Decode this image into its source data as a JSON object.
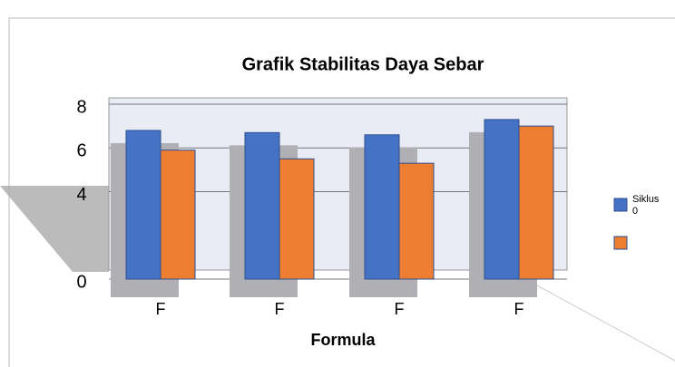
{
  "chart_data": {
    "type": "bar",
    "title": "Grafik Stabilitas Daya Sebar",
    "x_label": "Formula",
    "categories": [
      "F",
      "F",
      "F",
      "F"
    ],
    "series": [
      {
        "name": "Siklus 0",
        "color": "#4472c4",
        "values": [
          6.8,
          6.7,
          6.6,
          7.3
        ]
      },
      {
        "color": "#ed7d31",
        "values": [
          5.9,
          5.5,
          5.3,
          7.0
        ]
      }
    ],
    "ylim": [
      0,
      8
    ],
    "yticks": [
      0,
      4,
      6,
      8
    ],
    "grid": true,
    "legend": "right"
  }
}
